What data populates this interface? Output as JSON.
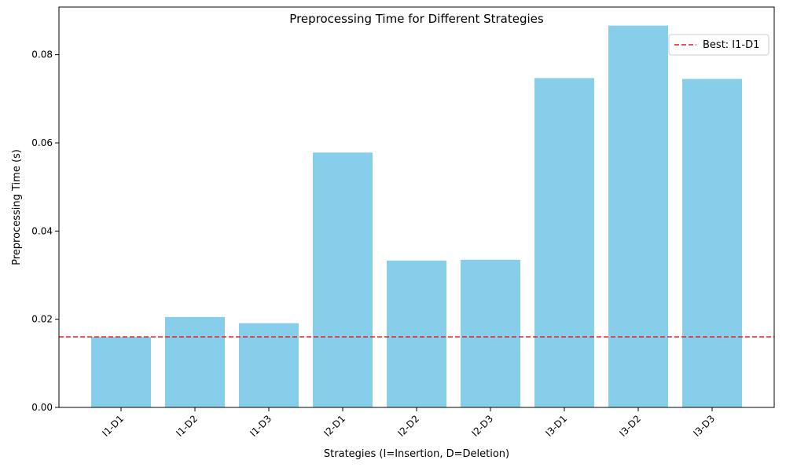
{
  "chart_data": {
    "type": "bar",
    "title": "Preprocessing Time for Different Strategies",
    "xlabel": "Strategies (I=Insertion, D=Deletion)",
    "ylabel": "Preprocessing Time (s)",
    "categories": [
      "I1-D1",
      "I1-D2",
      "I1-D3",
      "I2-D1",
      "I2-D2",
      "I2-D3",
      "I3-D1",
      "I3-D2",
      "I3-D3"
    ],
    "values": [
      0.016,
      0.0205,
      0.0191,
      0.0578,
      0.0333,
      0.0335,
      0.0747,
      0.0866,
      0.0745
    ],
    "ylim": [
      0,
      0.0908
    ],
    "yticks": [
      "0.00",
      "0.02",
      "0.04",
      "0.06",
      "0.08"
    ],
    "ytick_values": [
      0,
      0.02,
      0.04,
      0.06,
      0.08
    ],
    "bar_color": "#87ceeb",
    "reference_line": {
      "value": 0.016,
      "label": "Best: I1-D1",
      "color": "#e41a1c",
      "style": "dashed"
    },
    "legend": {
      "placement": "top-right"
    },
    "grid": false
  }
}
